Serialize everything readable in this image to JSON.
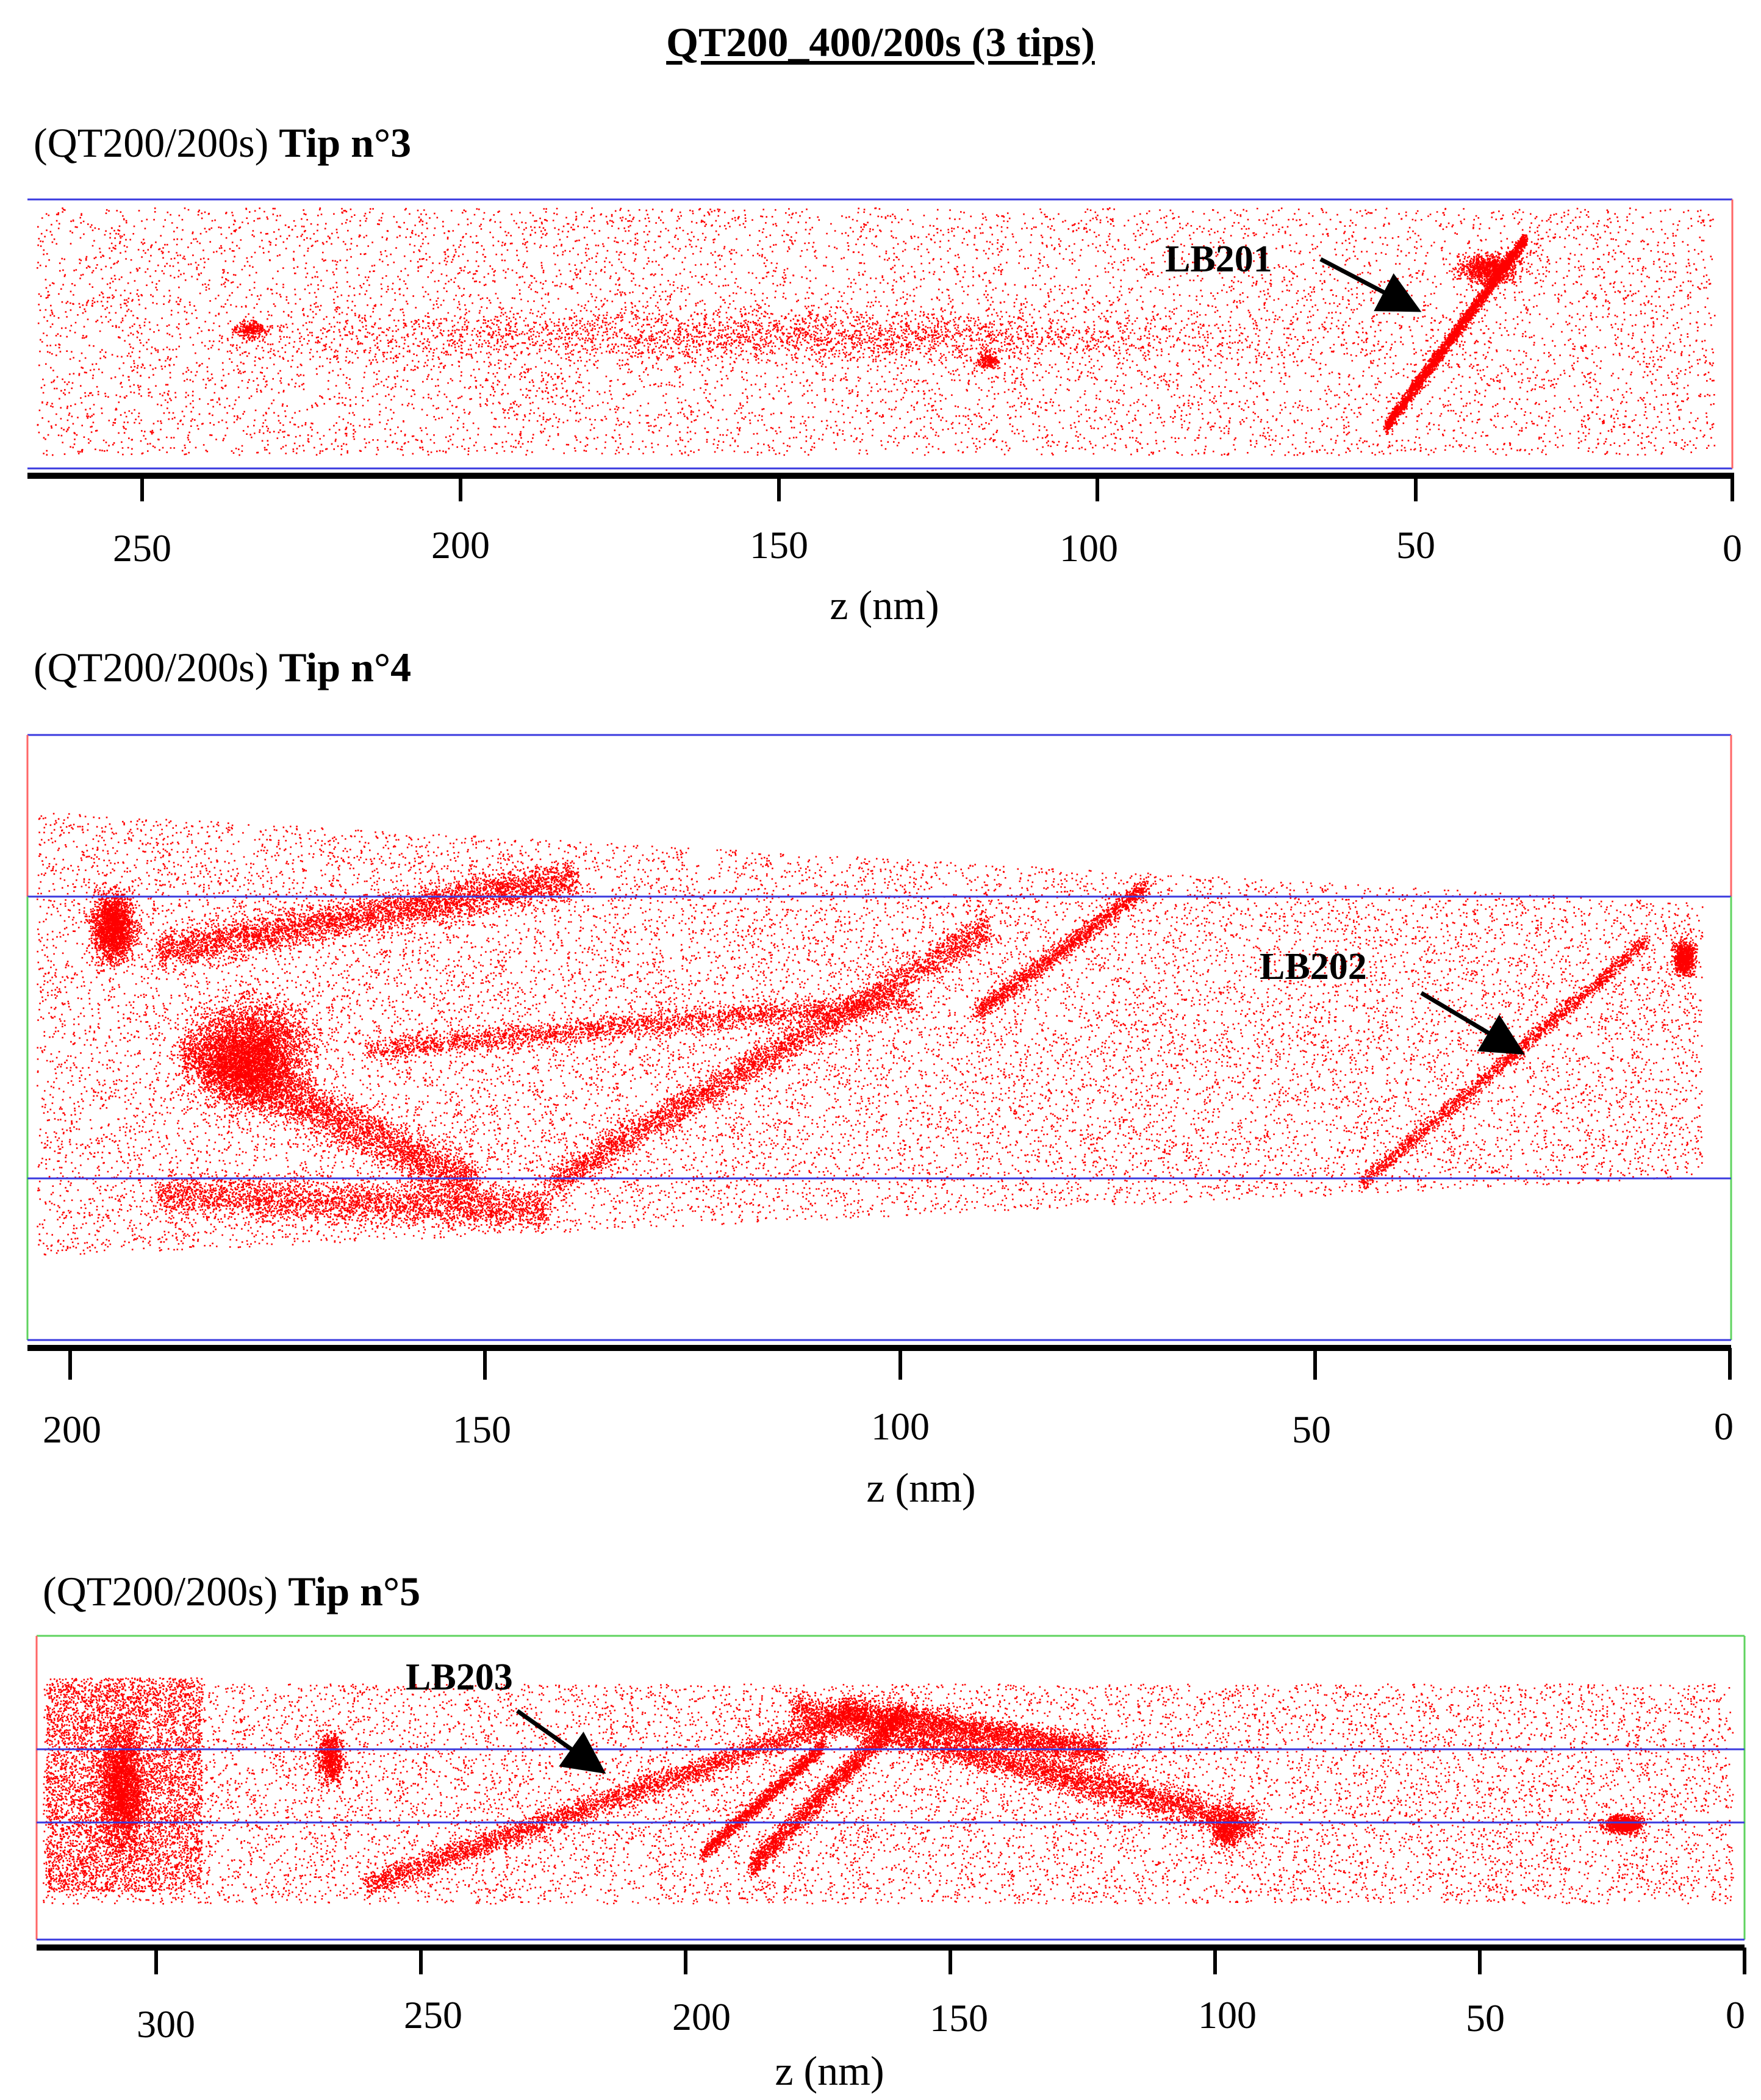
{
  "figure": {
    "title": "QT200_400/200s (3 tips)"
  },
  "panels": [
    {
      "id": "tip3",
      "title_prefix": "(QT200/200s)",
      "title_tip": "Tip n°3",
      "annotation": "LB201",
      "xlabel": "z (nm)",
      "ticks": [
        "250",
        "200",
        "150",
        "100",
        "50",
        "0"
      ]
    },
    {
      "id": "tip4",
      "title_prefix": "(QT200/200s)",
      "title_tip": "Tip n°4",
      "annotation": "LB202",
      "xlabel": "z (nm)",
      "ticks": [
        "200",
        "150",
        "100",
        "50",
        "0"
      ]
    },
    {
      "id": "tip5",
      "title_prefix": "(QT200/200s)",
      "title_tip": "Tip n°5",
      "annotation": "LB203",
      "xlabel": "z (nm)",
      "ticks": [
        "300",
        "250",
        "200",
        "150",
        "100",
        "50",
        "0"
      ]
    }
  ],
  "colors": {
    "points": "#ff0000",
    "box_blue": "#3a3adf",
    "box_red": "#ff6666",
    "box_green": "#5fd35f",
    "axis": "#000000"
  }
}
